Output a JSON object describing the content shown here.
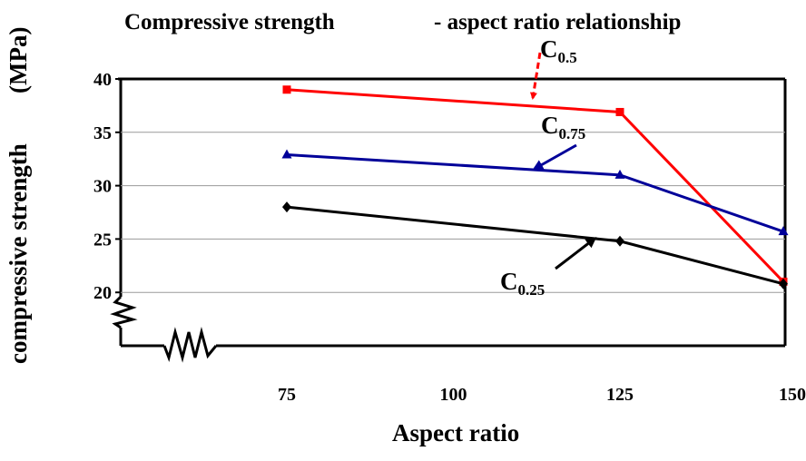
{
  "chart_data": {
    "type": "line",
    "title_part1": "Compressive strength",
    "title_part2": "- aspect ratio relationship",
    "xlabel": "Aspect ratio",
    "ylabel": "compressive strength",
    "ylabel_unit": "(MPa)",
    "x": [
      75,
      125,
      150
    ],
    "x_tick_labels": [
      "75",
      "100",
      "125",
      "150"
    ],
    "x_ticks": [
      75,
      100,
      125,
      150
    ],
    "xlim": [
      50,
      150
    ],
    "y_tick_labels": [
      "20",
      "25",
      "30",
      "35",
      "40"
    ],
    "y_ticks": [
      20,
      25,
      30,
      35,
      40
    ],
    "ylim": [
      15,
      40
    ],
    "grid": "horizontal",
    "axis_break": true,
    "series": [
      {
        "name": "C",
        "sub": "0.5",
        "values": [
          39,
          36.9,
          21
        ],
        "color": "#ff0000",
        "marker": "square",
        "arrow_color": "#ff0000"
      },
      {
        "name": "C",
        "sub": "0.75",
        "values": [
          32.9,
          31,
          25.7
        ],
        "color": "#000099",
        "marker": "triangle",
        "arrow_color": "#000099"
      },
      {
        "name": "C",
        "sub": "0.25",
        "values": [
          28,
          24.8,
          20.8
        ],
        "color": "#000000",
        "marker": "diamond",
        "arrow_color": "#000000"
      }
    ]
  }
}
